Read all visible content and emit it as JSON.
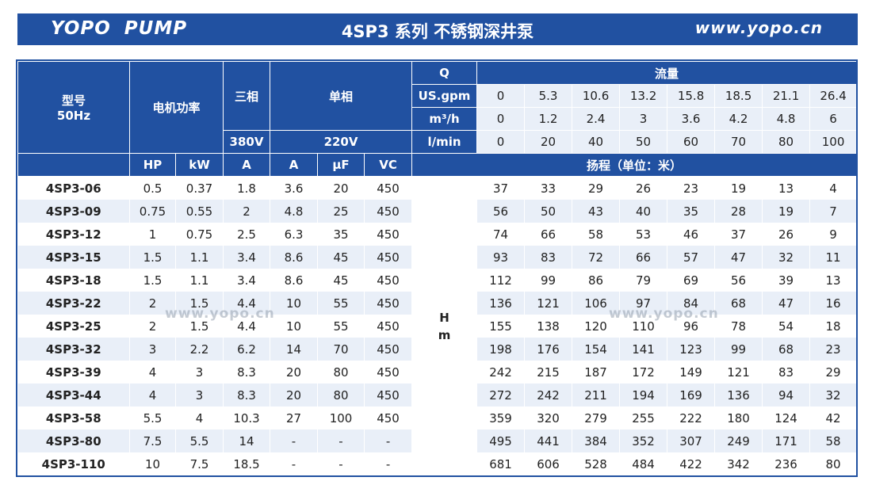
{
  "banner": {
    "brand": "YOPO  PUMP",
    "title": "4SP3 系列 不锈钢深井泵",
    "website": "www.yopo.cn"
  },
  "header": {
    "model": "型号",
    "freq": "50Hz",
    "motor_power": "电机功率",
    "three_phase": "三相",
    "single_phase": "单相",
    "q": "Q",
    "flow": "流量",
    "usgpm": "US.gpm",
    "m3h": "m³/h",
    "lmin": "l/min",
    "v380": "380V",
    "v220": "220V",
    "hp": "HP",
    "kw": "kW",
    "a3": "A",
    "a1": "A",
    "uf": "μF",
    "vc": "VC",
    "head": "扬程（单位：米）",
    "h_label": "H",
    "m_label": "m"
  },
  "flow_rates": {
    "usgpm": [
      "0",
      "5.3",
      "10.6",
      "13.2",
      "15.8",
      "18.5",
      "21.1",
      "26.4"
    ],
    "m3h": [
      "0",
      "1.2",
      "2.4",
      "3",
      "3.6",
      "4.2",
      "4.8",
      "6"
    ],
    "lmin": [
      "0",
      "20",
      "40",
      "50",
      "60",
      "70",
      "80",
      "100"
    ]
  },
  "rows": [
    {
      "model": "4SP3-06",
      "hp": "0.5",
      "kw": "0.37",
      "a3": "1.8",
      "a1": "3.6",
      "uf": "20",
      "vc": "450",
      "heads": [
        "37",
        "33",
        "29",
        "26",
        "23",
        "19",
        "13",
        "4"
      ]
    },
    {
      "model": "4SP3-09",
      "hp": "0.75",
      "kw": "0.55",
      "a3": "2",
      "a1": "4.8",
      "uf": "25",
      "vc": "450",
      "heads": [
        "56",
        "50",
        "43",
        "40",
        "35",
        "28",
        "19",
        "7"
      ]
    },
    {
      "model": "4SP3-12",
      "hp": "1",
      "kw": "0.75",
      "a3": "2.5",
      "a1": "6.3",
      "uf": "35",
      "vc": "450",
      "heads": [
        "74",
        "66",
        "58",
        "53",
        "46",
        "37",
        "26",
        "9"
      ]
    },
    {
      "model": "4SP3-15",
      "hp": "1.5",
      "kw": "1.1",
      "a3": "3.4",
      "a1": "8.6",
      "uf": "45",
      "vc": "450",
      "heads": [
        "93",
        "83",
        "72",
        "66",
        "57",
        "47",
        "32",
        "11"
      ]
    },
    {
      "model": "4SP3-18",
      "hp": "1.5",
      "kw": "1.1",
      "a3": "3.4",
      "a1": "8.6",
      "uf": "45",
      "vc": "450",
      "heads": [
        "112",
        "99",
        "86",
        "79",
        "69",
        "56",
        "39",
        "13"
      ]
    },
    {
      "model": "4SP3-22",
      "hp": "2",
      "kw": "1.5",
      "a3": "4.4",
      "a1": "10",
      "uf": "55",
      "vc": "450",
      "heads": [
        "136",
        "121",
        "106",
        "97",
        "84",
        "68",
        "47",
        "16"
      ]
    },
    {
      "model": "4SP3-25",
      "hp": "2",
      "kw": "1.5",
      "a3": "4.4",
      "a1": "10",
      "uf": "55",
      "vc": "450",
      "heads": [
        "155",
        "138",
        "120",
        "110",
        "96",
        "78",
        "54",
        "18"
      ]
    },
    {
      "model": "4SP3-32",
      "hp": "3",
      "kw": "2.2",
      "a3": "6.2",
      "a1": "14",
      "uf": "70",
      "vc": "450",
      "heads": [
        "198",
        "176",
        "154",
        "141",
        "123",
        "99",
        "68",
        "23"
      ]
    },
    {
      "model": "4SP3-39",
      "hp": "4",
      "kw": "3",
      "a3": "8.3",
      "a1": "20",
      "uf": "80",
      "vc": "450",
      "heads": [
        "242",
        "215",
        "187",
        "172",
        "149",
        "121",
        "83",
        "29"
      ]
    },
    {
      "model": "4SP3-44",
      "hp": "4",
      "kw": "3",
      "a3": "8.3",
      "a1": "20",
      "uf": "80",
      "vc": "450",
      "heads": [
        "272",
        "242",
        "211",
        "194",
        "169",
        "136",
        "94",
        "32"
      ]
    },
    {
      "model": "4SP3-58",
      "hp": "5.5",
      "kw": "4",
      "a3": "10.3",
      "a1": "27",
      "uf": "100",
      "vc": "450",
      "heads": [
        "359",
        "320",
        "279",
        "255",
        "222",
        "180",
        "124",
        "42"
      ]
    },
    {
      "model": "4SP3-80",
      "hp": "7.5",
      "kw": "5.5",
      "a3": "14",
      "a1": "-",
      "uf": "-",
      "vc": "-",
      "heads": [
        "495",
        "441",
        "384",
        "352",
        "307",
        "249",
        "171",
        "58"
      ]
    },
    {
      "model": "4SP3-110",
      "hp": "10",
      "kw": "7.5",
      "a3": "18.5",
      "a1": "-",
      "uf": "-",
      "vc": "-",
      "heads": [
        "681",
        "606",
        "528",
        "484",
        "422",
        "342",
        "236",
        "80"
      ]
    }
  ],
  "watermark": "www.yopo.cn",
  "colors": {
    "header_blue": "#2151a1",
    "stripe": "#e9eff8"
  }
}
